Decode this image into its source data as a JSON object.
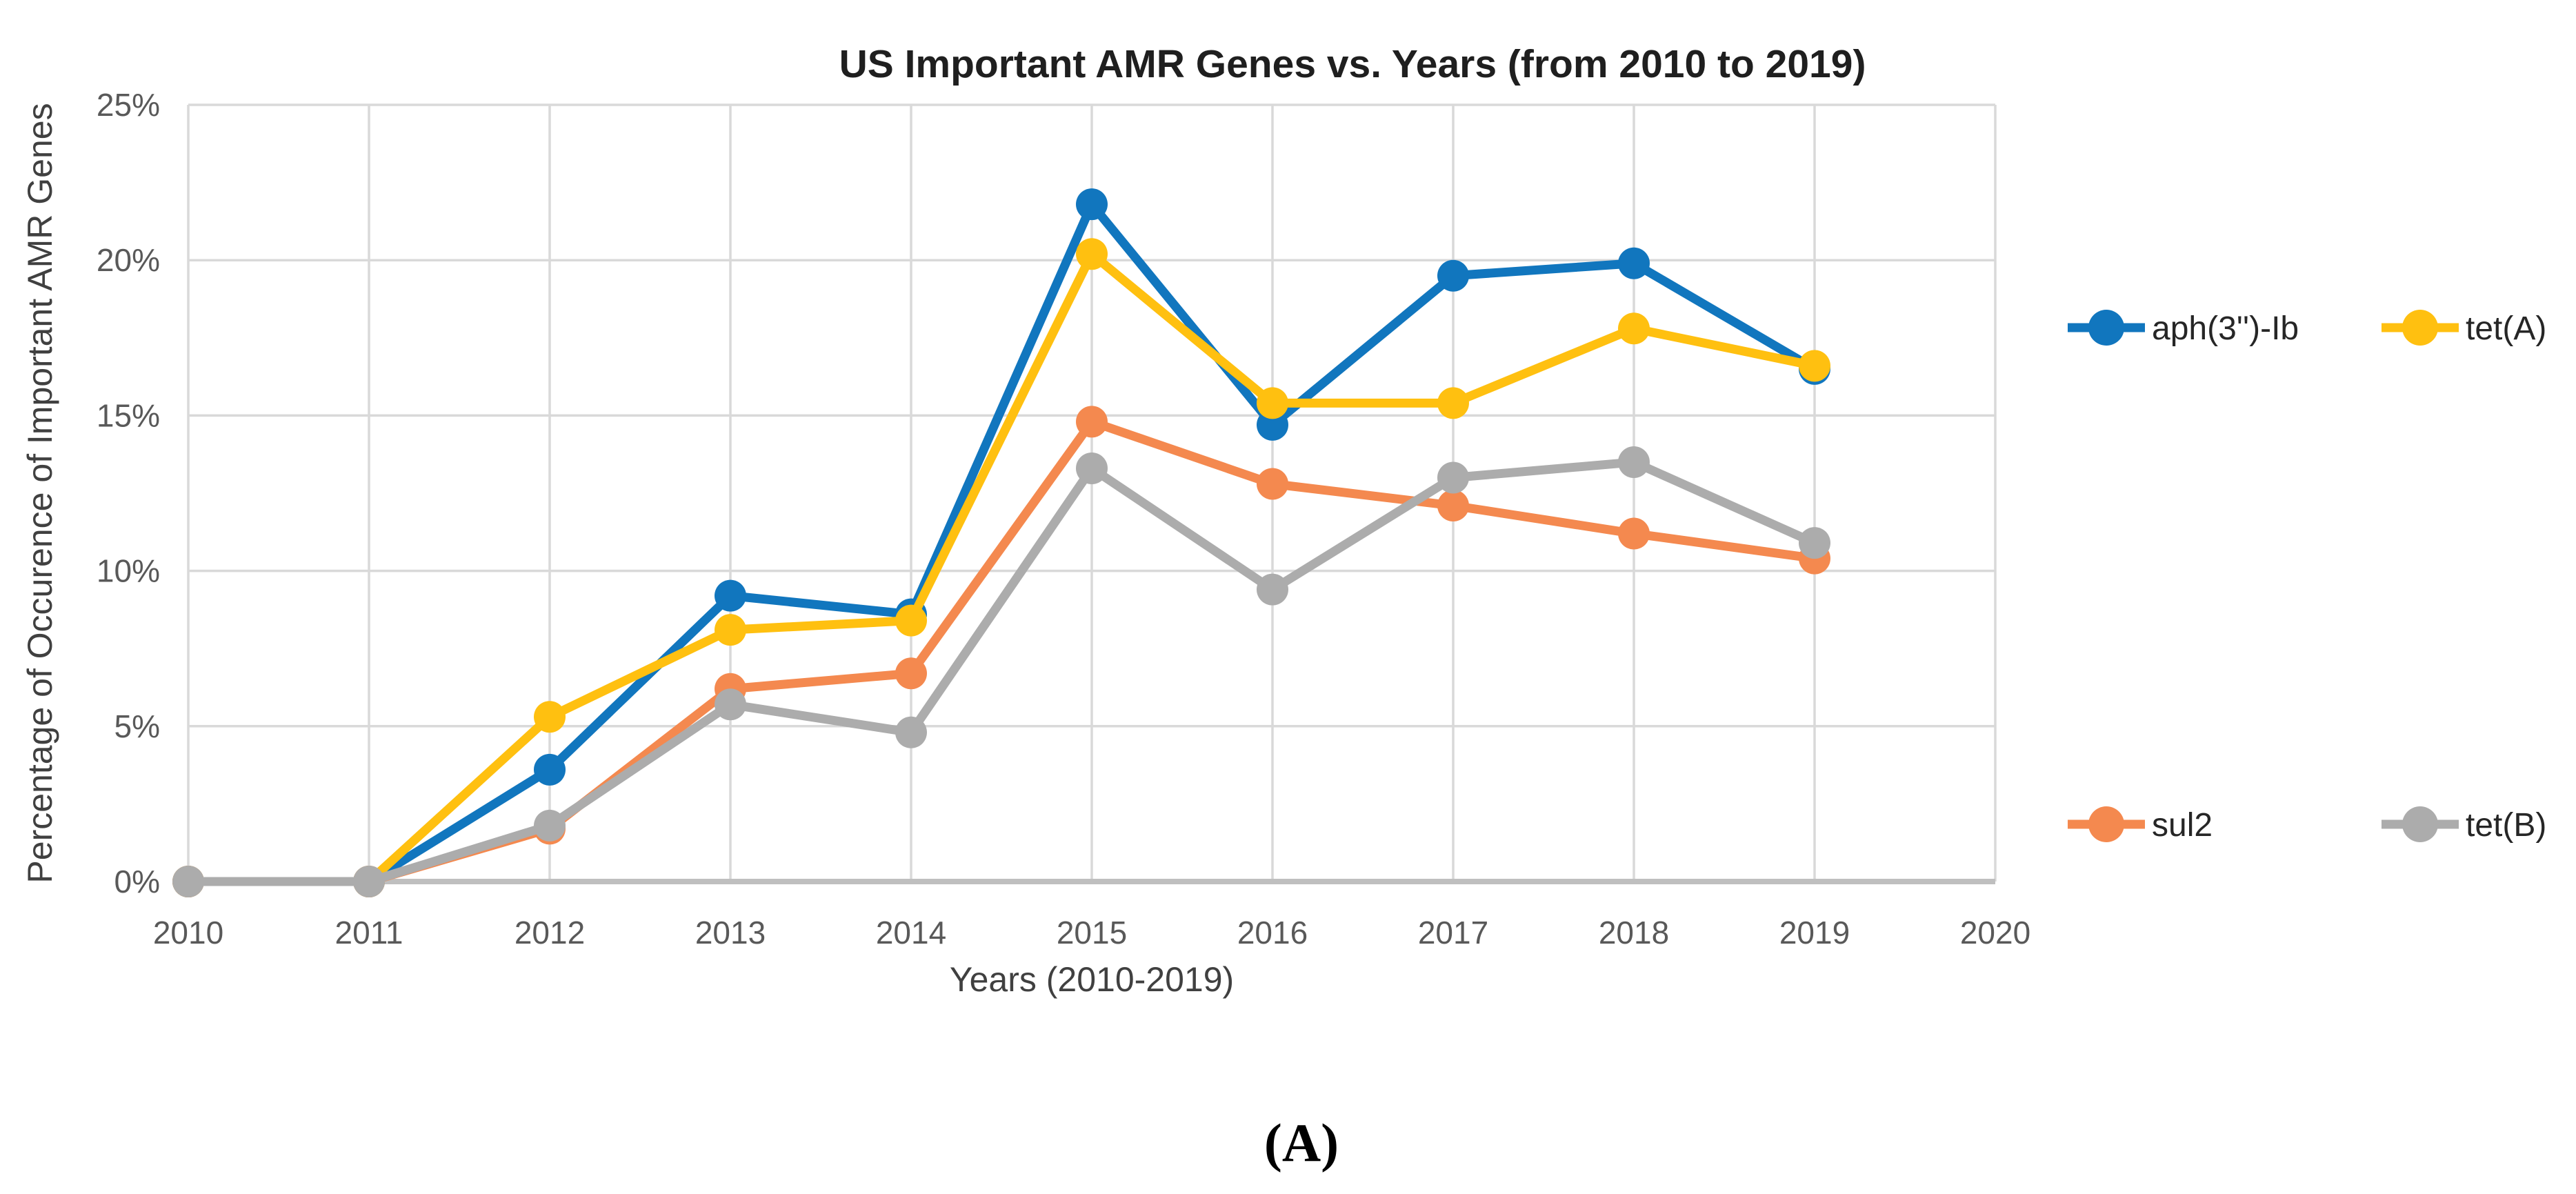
{
  "figure": {
    "caption": "(A)"
  },
  "chart_data": {
    "type": "line",
    "title": "US Important AMR Genes vs. Years (from 2010 to 2019)",
    "xlabel": "Years (2010-2019)",
    "ylabel": "Percentage of Occurence of Important AMR Genes",
    "categories": [
      2010,
      2011,
      2012,
      2013,
      2014,
      2015,
      2016,
      2017,
      2018,
      2019
    ],
    "x_axis_ticks": [
      "2010",
      "2011",
      "2012",
      "2013",
      "2014",
      "2015",
      "2016",
      "2017",
      "2018",
      "2019",
      "2020"
    ],
    "x_axis_tick_years": [
      2010,
      2011,
      2012,
      2013,
      2014,
      2015,
      2016,
      2017,
      2018,
      2019,
      2020
    ],
    "y_axis_ticks": [
      "0%",
      "5%",
      "10%",
      "15%",
      "20%",
      "25%"
    ],
    "y_axis_tick_values": [
      0,
      5,
      10,
      15,
      20,
      25
    ],
    "xlim": [
      2010,
      2020
    ],
    "ylim": [
      0,
      25
    ],
    "grid": true,
    "legend_position": "right-two-rows",
    "series": [
      {
        "name": "aph(3'')-Ib",
        "color": "#1176BE",
        "values": [
          0,
          0,
          3.6,
          9.2,
          8.6,
          21.8,
          14.7,
          19.5,
          19.9,
          16.5
        ]
      },
      {
        "name": "tet(A)",
        "color": "#FFC010",
        "values": [
          0,
          0,
          5.3,
          8.1,
          8.4,
          20.2,
          15.4,
          15.4,
          17.8,
          16.6
        ]
      },
      {
        "name": "sul2",
        "color": "#F4894F",
        "values": [
          0,
          0,
          1.7,
          6.2,
          6.7,
          14.8,
          12.8,
          12.1,
          11.2,
          10.4
        ]
      },
      {
        "name": "tet(B)",
        "color": "#ACACAC",
        "values": [
          0,
          0,
          1.8,
          5.7,
          4.8,
          13.3,
          9.4,
          13.0,
          13.5,
          10.9
        ]
      }
    ],
    "legend_entries": [
      "aph(3'')-Ib",
      "tet(A)",
      "sul2",
      "tet(B)"
    ]
  },
  "colors": {
    "background": "#FFFFFF",
    "gridline": "#D9D9D9",
    "axis_line": "#BFBFBF",
    "tick_text": "#595959",
    "series_blue": "#1176BE",
    "series_yellow": "#FFC010",
    "series_orange": "#F4894F",
    "series_gray": "#ACACAC"
  }
}
